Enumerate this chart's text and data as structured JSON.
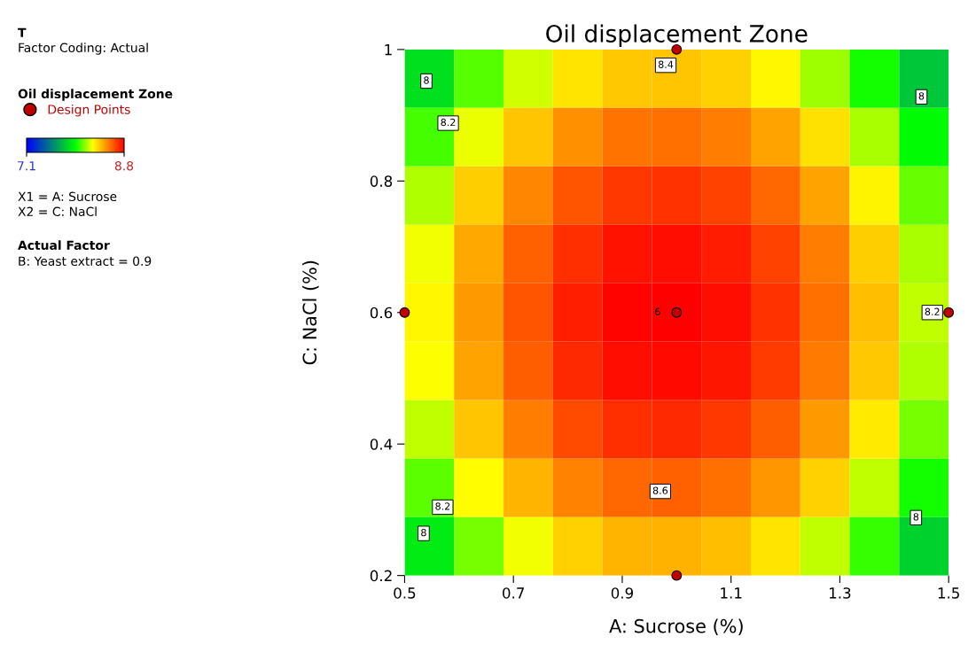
{
  "chart_data": {
    "type": "heatmap",
    "title": "Oil displacement Zone",
    "xlabel": "A: Sucrose (%)",
    "ylabel": "C: NaCl (%)",
    "legend_title": "Oil displacement Zone",
    "xlim": [
      0.5,
      1.5
    ],
    "xticks": [
      0.5,
      0.7,
      0.9,
      1.1,
      1.3,
      1.5
    ],
    "ylim": [
      0.2,
      1
    ],
    "yticks": [
      0.2,
      0.4,
      0.6,
      0.8,
      1
    ],
    "clim": [
      7.1,
      8.8
    ],
    "cticks": [
      7.1,
      8.8
    ],
    "legend": "left",
    "cells": [
      [
        7.85,
        8.05,
        8.2,
        8.31,
        8.37,
        8.38,
        8.35,
        8.27,
        8.14,
        7.97,
        7.76
      ],
      [
        8.03,
        8.23,
        8.38,
        8.49,
        8.55,
        8.56,
        8.53,
        8.45,
        8.32,
        8.15,
        7.94
      ],
      [
        8.16,
        8.36,
        8.51,
        8.62,
        8.68,
        8.69,
        8.66,
        8.58,
        8.45,
        8.28,
        8.07
      ],
      [
        8.24,
        8.44,
        8.59,
        8.7,
        8.76,
        8.77,
        8.74,
        8.66,
        8.53,
        8.36,
        8.15
      ],
      [
        8.27,
        8.47,
        8.62,
        8.73,
        8.79,
        8.8,
        8.77,
        8.69,
        8.56,
        8.39,
        8.18
      ],
      [
        8.25,
        8.45,
        8.6,
        8.71,
        8.77,
        8.78,
        8.75,
        8.67,
        8.54,
        8.37,
        8.16
      ],
      [
        8.18,
        8.38,
        8.53,
        8.64,
        8.7,
        8.71,
        8.68,
        8.6,
        8.47,
        8.3,
        8.09
      ],
      [
        8.06,
        8.26,
        8.41,
        8.52,
        8.58,
        8.59,
        8.56,
        8.48,
        8.35,
        8.18,
        7.97
      ],
      [
        7.89,
        8.09,
        8.24,
        8.35,
        8.41,
        8.42,
        8.39,
        8.31,
        8.18,
        8.01,
        7.8
      ]
    ],
    "series": [
      {
        "type": "scatter",
        "name": "Design Points",
        "color": "#c00000",
        "marker": "circle",
        "x": [
          0.5,
          1.0,
          1.0,
          1.0,
          1.5
        ],
        "values": [
          0.6,
          1.0,
          0.6,
          0.2,
          0.6
        ]
      }
    ],
    "annotations": [
      "T",
      "Factor Coding: Actual",
      "X1 = A: Sucrose",
      "X2 = C: NaCl",
      "Actual Factor",
      "B: Yeast extract = 0.9",
      "8.4",
      "8",
      "8.2",
      "8",
      "8.2",
      "8.6",
      "8.2",
      "8",
      "8",
      "6"
    ]
  }
}
